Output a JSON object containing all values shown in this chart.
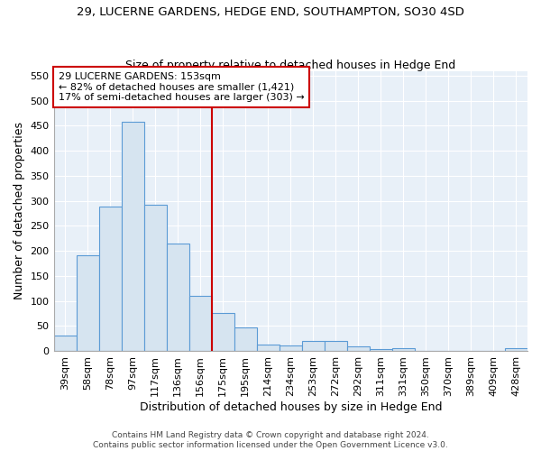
{
  "title_line1": "29, LUCERNE GARDENS, HEDGE END, SOUTHAMPTON, SO30 4SD",
  "title_line2": "Size of property relative to detached houses in Hedge End",
  "xlabel": "Distribution of detached houses by size in Hedge End",
  "ylabel": "Number of detached properties",
  "bar_facecolor": "#d6e4f0",
  "bar_edgecolor": "#5b9bd5",
  "vline_color": "#cc0000",
  "annotation_text": "29 LUCERNE GARDENS: 153sqm\n← 82% of detached houses are smaller (1,421)\n17% of semi-detached houses are larger (303) →",
  "annotation_box_edgecolor": "#cc0000",
  "categories": [
    "39sqm",
    "58sqm",
    "78sqm",
    "97sqm",
    "117sqm",
    "136sqm",
    "156sqm",
    "175sqm",
    "195sqm",
    "214sqm",
    "234sqm",
    "253sqm",
    "272sqm",
    "292sqm",
    "311sqm",
    "331sqm",
    "350sqm",
    "370sqm",
    "389sqm",
    "409sqm",
    "428sqm"
  ],
  "values": [
    30,
    192,
    288,
    458,
    292,
    214,
    110,
    75,
    47,
    12,
    11,
    20,
    20,
    9,
    4,
    5,
    0,
    0,
    0,
    0,
    5
  ],
  "ylim": [
    0,
    560
  ],
  "yticks": [
    0,
    50,
    100,
    150,
    200,
    250,
    300,
    350,
    400,
    450,
    500,
    550
  ],
  "background_color": "#e8f0f8",
  "grid_color": "#ffffff",
  "footer_line1": "Contains HM Land Registry data © Crown copyright and database right 2024.",
  "footer_line2": "Contains public sector information licensed under the Open Government Licence v3.0.",
  "title_fontsize": 9.5,
  "subtitle_fontsize": 9,
  "axis_label_fontsize": 9,
  "tick_fontsize": 8,
  "footer_fontsize": 6.5,
  "annotation_fontsize": 8
}
